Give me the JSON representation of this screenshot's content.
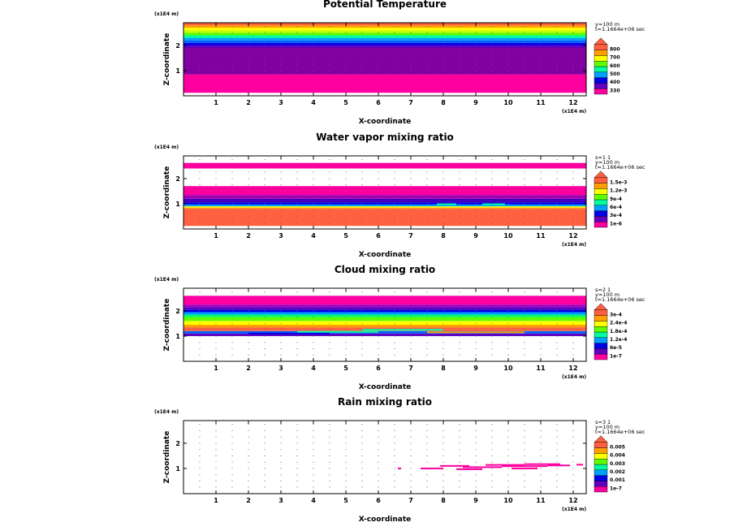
{
  "chart_data": [
    {
      "type": "heatmap",
      "title": "Potential Temperature",
      "xlabel": "X-coordinate",
      "ylabel": "Z-coordinate",
      "x_unit": "(x1E4 m)",
      "z_unit": "(x1E4 m)",
      "x_ticks": [
        1,
        2,
        3,
        4,
        5,
        6,
        7,
        8,
        9,
        10,
        11,
        12
      ],
      "z_ticks": [
        1,
        2
      ],
      "xlim": [
        0,
        12.4
      ],
      "zlim": [
        0,
        2.9
      ],
      "info": [
        "y=100 m",
        "t=1.1664e+06 sec"
      ],
      "colorbar_labels": [
        "330",
        "400",
        "500",
        "600",
        "700",
        "800"
      ],
      "colors": [
        "#ff00a0",
        "#6000c0",
        "#0000e8",
        "#00a0ff",
        "#00ffa0",
        "#60ff00",
        "#ffff00",
        "#ffa000",
        "#ff6040"
      ],
      "bands": [
        {
          "z0": 0.0,
          "z1": 0.12,
          "color": ""
        },
        {
          "z0": 0.12,
          "z1": 0.85,
          "color": "#ff00a0"
        },
        {
          "z0": 0.85,
          "z1": 1.9,
          "color": "#8000a0"
        },
        {
          "z0": 1.9,
          "z1": 2.0,
          "color": "#6000c0"
        },
        {
          "z0": 2.0,
          "z1": 2.1,
          "color": "#0000e8"
        },
        {
          "z0": 2.1,
          "z1": 2.2,
          "color": "#0060ff"
        },
        {
          "z0": 2.2,
          "z1": 2.3,
          "color": "#00a0ff"
        },
        {
          "z0": 2.3,
          "z1": 2.4,
          "color": "#00ffa0"
        },
        {
          "z0": 2.4,
          "z1": 2.5,
          "color": "#60ff00"
        },
        {
          "z0": 2.5,
          "z1": 2.6,
          "color": "#c0ff00"
        },
        {
          "z0": 2.6,
          "z1": 2.7,
          "color": "#ffff00"
        },
        {
          "z0": 2.7,
          "z1": 2.8,
          "color": "#ffa000"
        },
        {
          "z0": 2.8,
          "z1": 2.9,
          "color": "#ff6040"
        }
      ],
      "streaks": []
    },
    {
      "type": "heatmap",
      "title": "Water vapor mixing ratio",
      "xlabel": "X-coordinate",
      "ylabel": "Z-coordinate",
      "x_unit": "(x1E4 m)",
      "z_unit": "(x1E4 m)",
      "x_ticks": [
        1,
        2,
        3,
        4,
        5,
        6,
        7,
        8,
        9,
        10,
        11,
        12
      ],
      "z_ticks": [
        1,
        2
      ],
      "xlim": [
        0,
        12.4
      ],
      "zlim": [
        0,
        2.9
      ],
      "info": [
        "s=1 1",
        "y=100 m",
        "t=1.1664e+06 sec"
      ],
      "colorbar_labels": [
        "1e-6",
        "3e-4",
        "6e-4",
        "9e-4",
        "1.2e-3",
        "1.5e-3"
      ],
      "colors": [
        "#ff00a0",
        "#6000c0",
        "#0000e8",
        "#00a0ff",
        "#00ffa0",
        "#60ff00",
        "#ffff00",
        "#ffa000",
        "#ff6040"
      ],
      "bands": [
        {
          "z0": 0.0,
          "z1": 0.12,
          "color": ""
        },
        {
          "z0": 0.12,
          "z1": 0.8,
          "color": "#ff6040"
        },
        {
          "z0": 0.8,
          "z1": 0.85,
          "color": "#ffa000"
        },
        {
          "z0": 0.85,
          "z1": 0.9,
          "color": "#ffff00"
        },
        {
          "z0": 0.9,
          "z1": 0.97,
          "color": "#00a0ff"
        },
        {
          "z0": 0.97,
          "z1": 1.05,
          "color": "#0000e8"
        },
        {
          "z0": 1.05,
          "z1": 1.2,
          "color": "#4000c0"
        },
        {
          "z0": 1.2,
          "z1": 1.35,
          "color": "#a000b0"
        },
        {
          "z0": 1.35,
          "z1": 1.7,
          "color": "#ff00a0"
        },
        {
          "z0": 1.7,
          "z1": 2.4,
          "color": ""
        },
        {
          "z0": 2.4,
          "z1": 2.62,
          "color": "#ff00a0"
        }
      ],
      "streaks": [
        {
          "x0": 7.8,
          "x1": 8.4,
          "z": 0.98,
          "color": "#00ffa0"
        },
        {
          "x0": 9.2,
          "x1": 9.9,
          "z": 0.98,
          "color": "#00ffa0"
        }
      ]
    },
    {
      "type": "heatmap",
      "title": "Cloud mixing ratio",
      "xlabel": "X-coordinate",
      "ylabel": "Z-coordinate",
      "x_unit": "(x1E4 m)",
      "z_unit": "(x1E4 m)",
      "x_ticks": [
        1,
        2,
        3,
        4,
        5,
        6,
        7,
        8,
        9,
        10,
        11,
        12
      ],
      "z_ticks": [
        1,
        2
      ],
      "xlim": [
        0,
        12.4
      ],
      "zlim": [
        0,
        2.9
      ],
      "info": [
        "s=2 1",
        "y=100 m",
        "t=1.1664e+06 sec"
      ],
      "colorbar_labels": [
        "1e-7",
        "6e-5",
        "1.2e-4",
        "1.8e-4",
        "2.4e-4",
        "3e-4"
      ],
      "colors": [
        "#ff00a0",
        "#6000c0",
        "#0000e8",
        "#00a0ff",
        "#00ffa0",
        "#60ff00",
        "#ffff00",
        "#ffa000",
        "#ff6040"
      ],
      "bands": [
        {
          "z0": 1.0,
          "z1": 1.1,
          "color": "#6000c0"
        },
        {
          "z0": 1.1,
          "z1": 1.2,
          "color": "#0060ff"
        },
        {
          "z0": 1.2,
          "z1": 1.35,
          "color": "#ff6040"
        },
        {
          "z0": 1.35,
          "z1": 1.45,
          "color": "#ffa000"
        },
        {
          "z0": 1.45,
          "z1": 1.6,
          "color": "#ffff00"
        },
        {
          "z0": 1.6,
          "z1": 1.75,
          "color": "#60ff00"
        },
        {
          "z0": 1.75,
          "z1": 1.85,
          "color": "#00ff60"
        },
        {
          "z0": 1.85,
          "z1": 1.95,
          "color": "#00a0ff"
        },
        {
          "z0": 1.95,
          "z1": 2.05,
          "color": "#0000e8"
        },
        {
          "z0": 2.05,
          "z1": 2.15,
          "color": "#6000c0"
        },
        {
          "z0": 2.15,
          "z1": 2.25,
          "color": "#a000c0"
        },
        {
          "z0": 2.25,
          "z1": 2.6,
          "color": "#ff00a0"
        }
      ],
      "streaks": [
        {
          "x0": 3.5,
          "x1": 6.0,
          "z": 1.17,
          "color": "#00ffa0"
        },
        {
          "x0": 5.5,
          "x1": 8.0,
          "z": 1.25,
          "color": "#00ffa0"
        },
        {
          "x0": 7.5,
          "x1": 10.5,
          "z": 1.15,
          "color": "#ffa000"
        },
        {
          "x0": 2.0,
          "x1": 4.5,
          "z": 1.1,
          "color": "#0000e8"
        }
      ]
    },
    {
      "type": "heatmap",
      "title": "Rain mixing ratio",
      "xlabel": "X-coordinate",
      "ylabel": "Z-coordinate",
      "x_unit": "(x1E4 m)",
      "z_unit": "(x1E4 m)",
      "x_ticks": [
        1,
        2,
        3,
        4,
        5,
        6,
        7,
        8,
        9,
        10,
        11,
        12
      ],
      "z_ticks": [
        1,
        2
      ],
      "xlim": [
        0,
        12.4
      ],
      "zlim": [
        0,
        2.9
      ],
      "info": [
        "s=3 1",
        "y=100 m",
        "t=1.1664e+06 sec"
      ],
      "colorbar_labels": [
        "1e-7",
        "0.001",
        "0.002",
        "0.003",
        "0.004",
        "0.005"
      ],
      "colors": [
        "#ff00a0",
        "#6000c0",
        "#0000e8",
        "#00a0ff",
        "#00ffa0",
        "#60ff00",
        "#ffff00",
        "#ffa000",
        "#ff6040"
      ],
      "bands": [],
      "streaks": [
        {
          "x0": 6.6,
          "x1": 6.7,
          "z": 1.0,
          "color": "#ff00a0"
        },
        {
          "x0": 7.3,
          "x1": 8.0,
          "z": 1.0,
          "color": "#ff00a0"
        },
        {
          "x0": 7.9,
          "x1": 8.8,
          "z": 1.1,
          "color": "#ff00a0"
        },
        {
          "x0": 8.6,
          "x1": 9.8,
          "z": 1.05,
          "color": "#ff00a0"
        },
        {
          "x0": 9.3,
          "x1": 10.5,
          "z": 1.14,
          "color": "#ff00a0"
        },
        {
          "x0": 9.8,
          "x1": 11.2,
          "z": 1.09,
          "color": "#ff00a0"
        },
        {
          "x0": 10.5,
          "x1": 11.6,
          "z": 1.17,
          "color": "#ff00a0"
        },
        {
          "x0": 11.2,
          "x1": 11.9,
          "z": 1.12,
          "color": "#ff00a0"
        },
        {
          "x0": 12.1,
          "x1": 12.3,
          "z": 1.15,
          "color": "#ff00a0"
        },
        {
          "x0": 8.4,
          "x1": 9.2,
          "z": 0.97,
          "color": "#ff00a0"
        },
        {
          "x0": 10.1,
          "x1": 10.9,
          "z": 1.0,
          "color": "#ff00a0"
        }
      ]
    }
  ]
}
